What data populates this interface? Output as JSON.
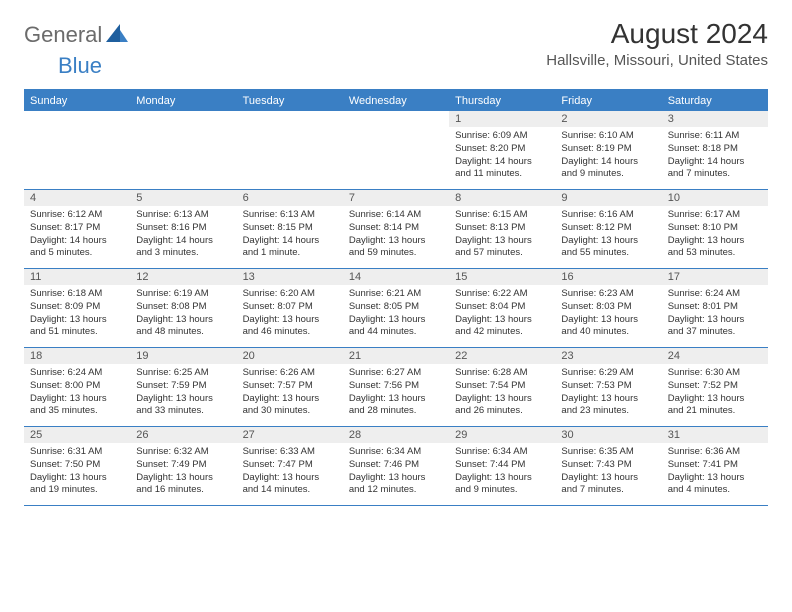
{
  "logo": {
    "part1": "General",
    "part2": "Blue"
  },
  "title": "August 2024",
  "location": "Hallsville, Missouri, United States",
  "day_headers": [
    "Sunday",
    "Monday",
    "Tuesday",
    "Wednesday",
    "Thursday",
    "Friday",
    "Saturday"
  ],
  "colors": {
    "accent": "#3a7fc4",
    "header_text": "#ffffff",
    "daynum_bg": "#eeeeee",
    "logo_gray": "#6b6b6b"
  },
  "weeks": [
    [
      {
        "num": "",
        "sunrise": "",
        "sunset": "",
        "daylight": ""
      },
      {
        "num": "",
        "sunrise": "",
        "sunset": "",
        "daylight": ""
      },
      {
        "num": "",
        "sunrise": "",
        "sunset": "",
        "daylight": ""
      },
      {
        "num": "",
        "sunrise": "",
        "sunset": "",
        "daylight": ""
      },
      {
        "num": "1",
        "sunrise": "Sunrise: 6:09 AM",
        "sunset": "Sunset: 8:20 PM",
        "daylight": "Daylight: 14 hours and 11 minutes."
      },
      {
        "num": "2",
        "sunrise": "Sunrise: 6:10 AM",
        "sunset": "Sunset: 8:19 PM",
        "daylight": "Daylight: 14 hours and 9 minutes."
      },
      {
        "num": "3",
        "sunrise": "Sunrise: 6:11 AM",
        "sunset": "Sunset: 8:18 PM",
        "daylight": "Daylight: 14 hours and 7 minutes."
      }
    ],
    [
      {
        "num": "4",
        "sunrise": "Sunrise: 6:12 AM",
        "sunset": "Sunset: 8:17 PM",
        "daylight": "Daylight: 14 hours and 5 minutes."
      },
      {
        "num": "5",
        "sunrise": "Sunrise: 6:13 AM",
        "sunset": "Sunset: 8:16 PM",
        "daylight": "Daylight: 14 hours and 3 minutes."
      },
      {
        "num": "6",
        "sunrise": "Sunrise: 6:13 AM",
        "sunset": "Sunset: 8:15 PM",
        "daylight": "Daylight: 14 hours and 1 minute."
      },
      {
        "num": "7",
        "sunrise": "Sunrise: 6:14 AM",
        "sunset": "Sunset: 8:14 PM",
        "daylight": "Daylight: 13 hours and 59 minutes."
      },
      {
        "num": "8",
        "sunrise": "Sunrise: 6:15 AM",
        "sunset": "Sunset: 8:13 PM",
        "daylight": "Daylight: 13 hours and 57 minutes."
      },
      {
        "num": "9",
        "sunrise": "Sunrise: 6:16 AM",
        "sunset": "Sunset: 8:12 PM",
        "daylight": "Daylight: 13 hours and 55 minutes."
      },
      {
        "num": "10",
        "sunrise": "Sunrise: 6:17 AM",
        "sunset": "Sunset: 8:10 PM",
        "daylight": "Daylight: 13 hours and 53 minutes."
      }
    ],
    [
      {
        "num": "11",
        "sunrise": "Sunrise: 6:18 AM",
        "sunset": "Sunset: 8:09 PM",
        "daylight": "Daylight: 13 hours and 51 minutes."
      },
      {
        "num": "12",
        "sunrise": "Sunrise: 6:19 AM",
        "sunset": "Sunset: 8:08 PM",
        "daylight": "Daylight: 13 hours and 48 minutes."
      },
      {
        "num": "13",
        "sunrise": "Sunrise: 6:20 AM",
        "sunset": "Sunset: 8:07 PM",
        "daylight": "Daylight: 13 hours and 46 minutes."
      },
      {
        "num": "14",
        "sunrise": "Sunrise: 6:21 AM",
        "sunset": "Sunset: 8:05 PM",
        "daylight": "Daylight: 13 hours and 44 minutes."
      },
      {
        "num": "15",
        "sunrise": "Sunrise: 6:22 AM",
        "sunset": "Sunset: 8:04 PM",
        "daylight": "Daylight: 13 hours and 42 minutes."
      },
      {
        "num": "16",
        "sunrise": "Sunrise: 6:23 AM",
        "sunset": "Sunset: 8:03 PM",
        "daylight": "Daylight: 13 hours and 40 minutes."
      },
      {
        "num": "17",
        "sunrise": "Sunrise: 6:24 AM",
        "sunset": "Sunset: 8:01 PM",
        "daylight": "Daylight: 13 hours and 37 minutes."
      }
    ],
    [
      {
        "num": "18",
        "sunrise": "Sunrise: 6:24 AM",
        "sunset": "Sunset: 8:00 PM",
        "daylight": "Daylight: 13 hours and 35 minutes."
      },
      {
        "num": "19",
        "sunrise": "Sunrise: 6:25 AM",
        "sunset": "Sunset: 7:59 PM",
        "daylight": "Daylight: 13 hours and 33 minutes."
      },
      {
        "num": "20",
        "sunrise": "Sunrise: 6:26 AM",
        "sunset": "Sunset: 7:57 PM",
        "daylight": "Daylight: 13 hours and 30 minutes."
      },
      {
        "num": "21",
        "sunrise": "Sunrise: 6:27 AM",
        "sunset": "Sunset: 7:56 PM",
        "daylight": "Daylight: 13 hours and 28 minutes."
      },
      {
        "num": "22",
        "sunrise": "Sunrise: 6:28 AM",
        "sunset": "Sunset: 7:54 PM",
        "daylight": "Daylight: 13 hours and 26 minutes."
      },
      {
        "num": "23",
        "sunrise": "Sunrise: 6:29 AM",
        "sunset": "Sunset: 7:53 PM",
        "daylight": "Daylight: 13 hours and 23 minutes."
      },
      {
        "num": "24",
        "sunrise": "Sunrise: 6:30 AM",
        "sunset": "Sunset: 7:52 PM",
        "daylight": "Daylight: 13 hours and 21 minutes."
      }
    ],
    [
      {
        "num": "25",
        "sunrise": "Sunrise: 6:31 AM",
        "sunset": "Sunset: 7:50 PM",
        "daylight": "Daylight: 13 hours and 19 minutes."
      },
      {
        "num": "26",
        "sunrise": "Sunrise: 6:32 AM",
        "sunset": "Sunset: 7:49 PM",
        "daylight": "Daylight: 13 hours and 16 minutes."
      },
      {
        "num": "27",
        "sunrise": "Sunrise: 6:33 AM",
        "sunset": "Sunset: 7:47 PM",
        "daylight": "Daylight: 13 hours and 14 minutes."
      },
      {
        "num": "28",
        "sunrise": "Sunrise: 6:34 AM",
        "sunset": "Sunset: 7:46 PM",
        "daylight": "Daylight: 13 hours and 12 minutes."
      },
      {
        "num": "29",
        "sunrise": "Sunrise: 6:34 AM",
        "sunset": "Sunset: 7:44 PM",
        "daylight": "Daylight: 13 hours and 9 minutes."
      },
      {
        "num": "30",
        "sunrise": "Sunrise: 6:35 AM",
        "sunset": "Sunset: 7:43 PM",
        "daylight": "Daylight: 13 hours and 7 minutes."
      },
      {
        "num": "31",
        "sunrise": "Sunrise: 6:36 AM",
        "sunset": "Sunset: 7:41 PM",
        "daylight": "Daylight: 13 hours and 4 minutes."
      }
    ]
  ]
}
